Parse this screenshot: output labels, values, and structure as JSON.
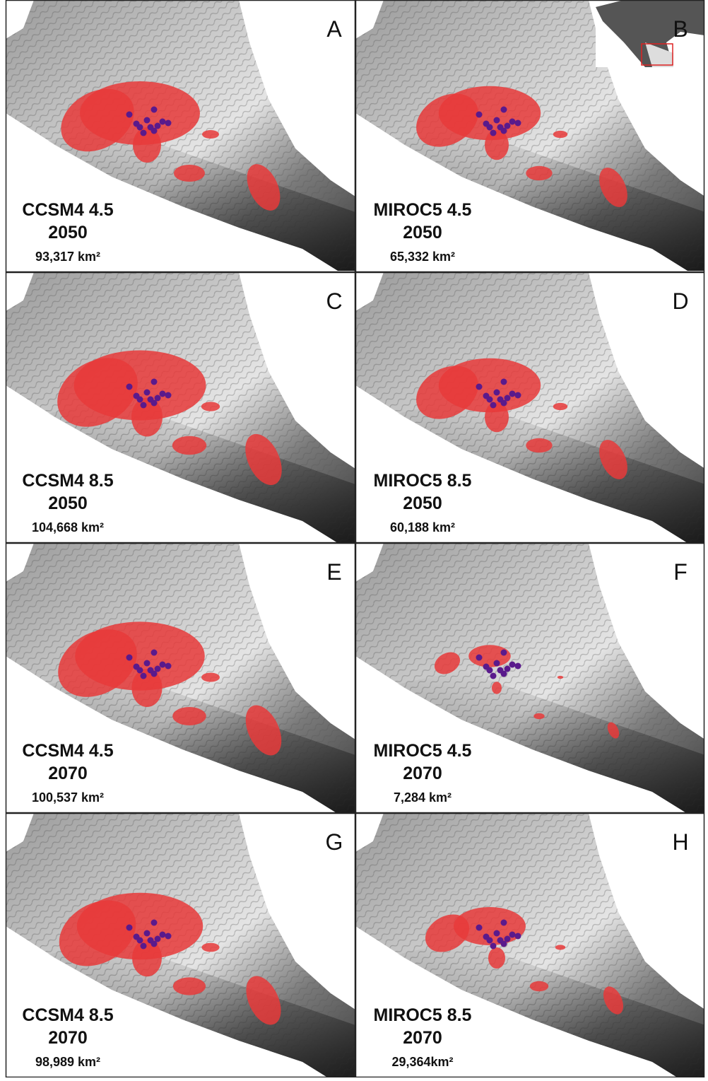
{
  "panels": [
    {
      "letter": "A",
      "model": "CCSM4 4.5",
      "year": "2050",
      "area": "93,317 km²"
    },
    {
      "letter": "B",
      "model": "MIROC5 4.5",
      "year": "2050",
      "area": "65,332 km²"
    },
    {
      "letter": "C",
      "model": "CCSM4 8.5",
      "year": "2050",
      "area": "104,668 km²"
    },
    {
      "letter": "D",
      "model": "MIROC5 8.5",
      "year": "2050",
      "area": "60,188 km²"
    },
    {
      "letter": "E",
      "model": "CCSM4 4.5",
      "year": "2070",
      "area": "100,537 km²"
    },
    {
      "letter": "F",
      "model": "MIROC5 4.5",
      "year": "2070",
      "area": "7,284 km²"
    },
    {
      "letter": "G",
      "model": "CCSM4 8.5",
      "year": "2070",
      "area": "98,989 km²"
    },
    {
      "letter": "H",
      "model": "MIROC5 8.5",
      "year": "2070",
      "area": "29,364km²"
    }
  ]
}
